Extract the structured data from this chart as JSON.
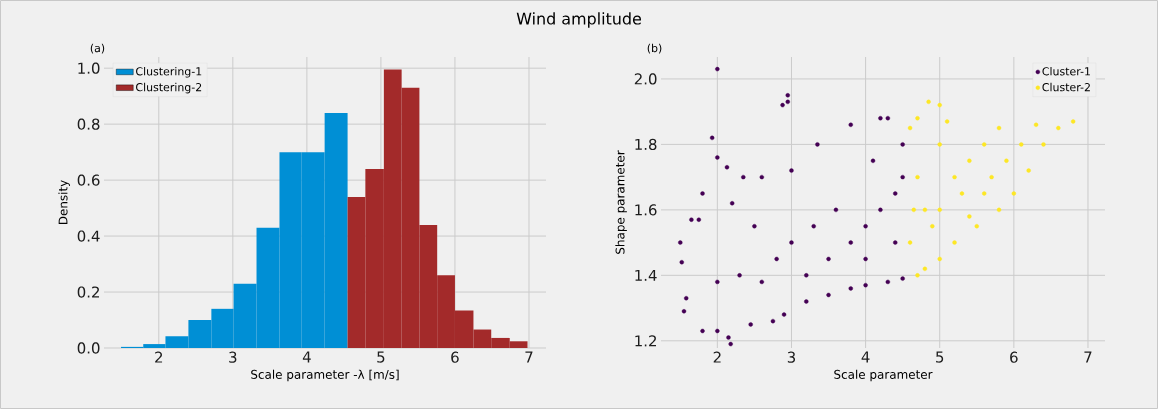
{
  "chart_data": [
    {
      "type": "histogram",
      "title": "Wind amplitude",
      "xlabel": "Scale parameter -λ [m/s]",
      "ylabel": "Density",
      "annotations": [
        "(a)"
      ],
      "bins": [
        1.49,
        1.79,
        2.09,
        2.4,
        2.71,
        3.01,
        3.32,
        3.63,
        3.93,
        4.24,
        4.55,
        4.79,
        5.04,
        5.28,
        5.52,
        5.76,
        6.0,
        6.25,
        6.49,
        6.74,
        6.98
      ],
      "series": [
        {
          "name": "Clustering-1",
          "color": "#008fd5",
          "values": [
            0.004,
            0.014,
            0.042,
            0.1,
            0.14,
            0.23,
            0.43,
            0.7,
            0.7,
            0.84,
            null,
            null,
            null,
            null,
            null,
            null,
            null,
            null,
            null,
            null
          ]
        },
        {
          "name": "Clustering-2",
          "color": "#a32a2a",
          "values": [
            null,
            null,
            null,
            null,
            null,
            null,
            null,
            null,
            null,
            null,
            0.54,
            0.64,
            0.995,
            0.93,
            0.44,
            0.26,
            0.134,
            0.066,
            0.036,
            0.024
          ]
        }
      ],
      "xlim": [
        1.26,
        7.23
      ],
      "ylim": [
        0,
        1.04
      ],
      "xticks": [
        2,
        3,
        4,
        5,
        6,
        7
      ],
      "yticks": [
        {
          "value": 0,
          "label": "0.0"
        },
        0.2,
        0.4,
        0.6,
        0.8,
        {
          "value": 1,
          "label": "1.0"
        }
      ],
      "grid": true,
      "legend": "top left"
    },
    {
      "type": "scatter",
      "xlabel": "Scale parameter",
      "ylabel": "Shape parameter",
      "annotations": [
        "(b)"
      ],
      "series": [
        {
          "name": "Cluster-1",
          "color": "#440154",
          "x": [
            2.0,
            2.95,
            2.95,
            2.88,
            1.93,
            2.0,
            2.13,
            1.8,
            1.5,
            1.52,
            1.55,
            1.58,
            1.8,
            2.0,
            2.18,
            2.15,
            2.45,
            2.75,
            2.9,
            3.2,
            3.5,
            3.8,
            4.0,
            4.3,
            4.5,
            4.5,
            4.3,
            4.2,
            3.8,
            3.35,
            3.0,
            2.6,
            2.35,
            2.2,
            1.65,
            1.75,
            2.5,
            3.0,
            3.5,
            3.8,
            4.0,
            4.2,
            4.4,
            4.5,
            3.3,
            2.8,
            2.3,
            2.0,
            3.6,
            4.1,
            4.4,
            4.0,
            3.2,
            2.6
          ],
          "values": [
            2.03,
            1.95,
            1.93,
            1.92,
            1.82,
            1.76,
            1.73,
            1.65,
            1.5,
            1.44,
            1.29,
            1.33,
            1.23,
            1.23,
            1.19,
            1.21,
            1.25,
            1.26,
            1.28,
            1.32,
            1.34,
            1.36,
            1.37,
            1.38,
            1.39,
            1.8,
            1.88,
            1.88,
            1.86,
            1.8,
            1.72,
            1.7,
            1.7,
            1.62,
            1.57,
            1.57,
            1.55,
            1.5,
            1.45,
            1.5,
            1.55,
            1.6,
            1.65,
            1.7,
            1.55,
            1.45,
            1.4,
            1.38,
            1.6,
            1.75,
            1.5,
            1.45,
            1.4,
            1.38
          ]
        },
        {
          "name": "Cluster-2",
          "color": "#fde725",
          "x": [
            4.6,
            4.6,
            4.7,
            4.8,
            5.0,
            5.2,
            5.5,
            5.8,
            6.0,
            6.2,
            6.4,
            6.8,
            5.0,
            4.85,
            4.7,
            5.0,
            5.2,
            5.4,
            5.6,
            5.8,
            4.8,
            5.0,
            5.3,
            4.7,
            4.9,
            5.6,
            6.1,
            6.3,
            5.9,
            5.1,
            4.65,
            5.4,
            5.7,
            6.6
          ],
          "values": [
            1.5,
            1.85,
            1.4,
            1.42,
            1.45,
            1.5,
            1.55,
            1.6,
            1.65,
            1.72,
            1.8,
            1.87,
            1.92,
            1.93,
            1.88,
            1.8,
            1.7,
            1.75,
            1.8,
            1.85,
            1.6,
            1.6,
            1.65,
            1.7,
            1.55,
            1.65,
            1.8,
            1.86,
            1.75,
            1.87,
            1.6,
            1.58,
            1.7,
            1.85
          ]
        }
      ],
      "xlim": [
        1.24,
        7.23
      ],
      "ylim": [
        1.178,
        2.067
      ],
      "xticks": [
        2,
        3,
        4,
        5,
        6,
        7
      ],
      "yticks": [
        1.2,
        1.4,
        1.6,
        1.8,
        {
          "value": 2,
          "label": "2.0"
        }
      ],
      "grid": true,
      "legend": "top right",
      "marker": "circle"
    }
  ]
}
